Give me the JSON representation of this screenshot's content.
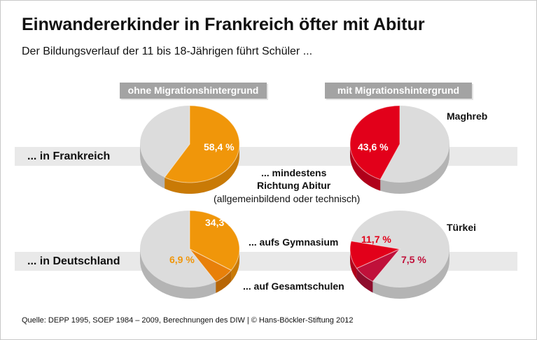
{
  "title": "Einwandererkinder in Frankreich öfter mit Abitur",
  "subtitle": "Der Bildungsverlauf der 11 bis 18-Jährigen führt Schüler ...",
  "headers": {
    "left": "ohne Migrationshintergrund",
    "right": "mit Migrationshintergrund"
  },
  "rows": {
    "france": "... in Frankreich",
    "germany": "... in Deutschland"
  },
  "groups": {
    "maghreb": "Maghreb",
    "tuerkei": "Türkei"
  },
  "annotations": {
    "abitur1": "... mindestens",
    "abitur2": "Richtung Abitur",
    "abitur3": "(allgemeinbildend oder technisch)",
    "gymnasium": "... aufs Gymnasium",
    "gesamtschule": "... auf Gesamtschulen"
  },
  "source": "Quelle: DEPP 1995, SOEP 1984 – 2009, Berechnungen des DIW | © Hans-Böckler-Stiftung 2012",
  "colors": {
    "orange": "#f0960a",
    "orange_dark": "#e8800a",
    "red": "#e2001a",
    "red_dark": "#c0103a",
    "gray": "#dcdcdc"
  },
  "chart_data": [
    {
      "type": "pie",
      "row": "... in Frankreich",
      "group": "ohne Migrationshintergrund",
      "slices": [
        {
          "label": "... mindestens Richtung Abitur",
          "value": 58.4,
          "text": "58,4 %"
        }
      ]
    },
    {
      "type": "pie",
      "row": "... in Frankreich",
      "group": "mit Migrationshintergrund (Maghreb)",
      "slices": [
        {
          "label": "... mindestens Richtung Abitur",
          "value": 43.6,
          "text": "43,6 %"
        }
      ]
    },
    {
      "type": "pie",
      "row": "... in Deutschland",
      "group": "ohne Migrationshintergrund",
      "slices": [
        {
          "label": "... aufs Gymnasium",
          "value": 34.3,
          "text": "34,3 %"
        },
        {
          "label": "... auf Gesamtschulen",
          "value": 6.9,
          "text": "6,9 %"
        }
      ]
    },
    {
      "type": "pie",
      "row": "... in Deutschland",
      "group": "mit Migrationshintergrund (Türkei)",
      "slices": [
        {
          "label": "... aufs Gymnasium",
          "value": 11.7,
          "text": "11,7 %"
        },
        {
          "label": "... auf Gesamtschulen",
          "value": 7.5,
          "text": "7,5 %"
        }
      ]
    }
  ]
}
